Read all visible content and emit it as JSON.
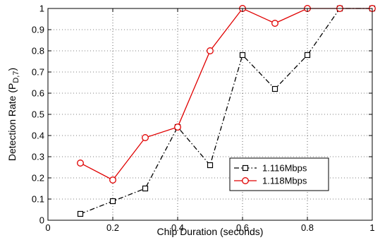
{
  "chart_data": {
    "type": "line",
    "xlabel": "Chip Duration (seconds)",
    "ylabel": "Detection Rate (P",
    "ylabel_sub": "D,7",
    "ylabel_close": ")",
    "xlim": [
      0,
      1
    ],
    "ylim": [
      0,
      1
    ],
    "xticks": [
      0,
      0.2,
      0.4,
      0.6,
      0.8,
      1
    ],
    "xtick_labels": [
      "0",
      "0.2",
      "0.4",
      "0.6",
      "0.8",
      "1"
    ],
    "yticks": [
      0,
      0.1,
      0.2,
      0.3,
      0.4,
      0.5,
      0.6,
      0.7,
      0.8,
      0.9,
      1
    ],
    "ytick_labels": [
      "0",
      "0.1",
      "0.2",
      "0.3",
      "0.4",
      "0.5",
      "0.6",
      "0.7",
      "0.8",
      "0.9",
      "1"
    ],
    "grid": true,
    "legend_position": "lower-right",
    "x": [
      0.1,
      0.2,
      0.3,
      0.4,
      0.5,
      0.6,
      0.7,
      0.8,
      0.9,
      1.0
    ],
    "series": [
      {
        "name": "1.116Mbps",
        "values": [
          0.03,
          0.09,
          0.15,
          0.44,
          0.26,
          0.78,
          0.62,
          0.78,
          1.0,
          1.0
        ],
        "color": "#000000",
        "line_style": "dash-dot",
        "marker": "square"
      },
      {
        "name": "1.118Mbps",
        "values": [
          0.27,
          0.19,
          0.39,
          0.44,
          0.8,
          1.0,
          0.93,
          1.0,
          1.0,
          1.0
        ],
        "color": "#e00000",
        "line_style": "solid",
        "marker": "circle"
      }
    ]
  }
}
